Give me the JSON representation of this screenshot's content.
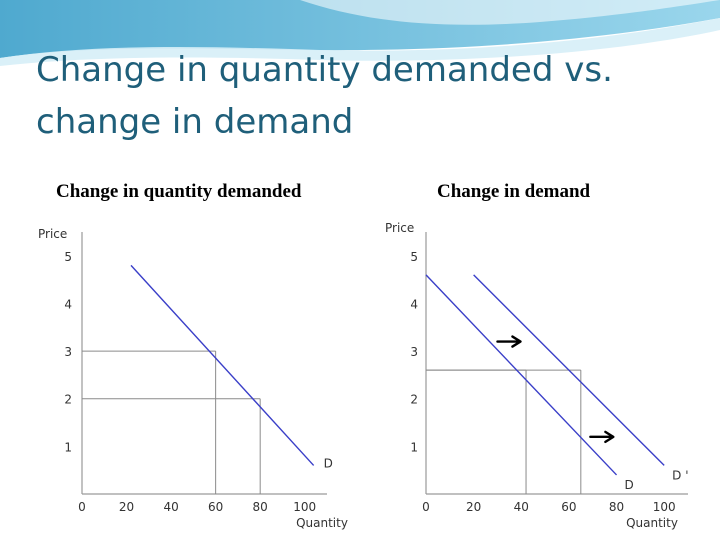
{
  "slide": {
    "title_line1": "Change in quantity demanded vs.",
    "title_line2": "change in demand"
  },
  "colors": {
    "title": "#1f5f7a",
    "demand_line": "#3a3fc8",
    "guide_line": "#8a8a8a",
    "axis": "#9a9a9a",
    "banner": "#5fb6d8"
  },
  "chart_data": [
    {
      "type": "line",
      "heading": "Change in quantity demanded",
      "ylabel": "Price",
      "xlabel": "Quantity",
      "xlim": [
        0,
        110
      ],
      "ylim": [
        0,
        5.5
      ],
      "xticks": [
        0,
        20,
        40,
        60,
        80,
        100
      ],
      "yticks": [
        1,
        2,
        3,
        4,
        5
      ],
      "series": [
        {
          "name": "D",
          "points": [
            [
              22,
              4.8
            ],
            [
              104,
              0.6
            ]
          ]
        }
      ],
      "guides": [
        {
          "x": 60,
          "y": 3
        },
        {
          "x": 80,
          "y": 2
        }
      ],
      "arrows": []
    },
    {
      "type": "line",
      "heading": "Change in demand",
      "ylabel": "Price",
      "xlabel": "Quantity",
      "xlim": [
        0,
        110
      ],
      "ylim": [
        0,
        5.5
      ],
      "xticks": [
        0,
        20,
        40,
        60,
        80,
        100
      ],
      "yticks": [
        1,
        2,
        3,
        4,
        5
      ],
      "series": [
        {
          "name": "D",
          "points": [
            [
              0,
              4.6
            ],
            [
              80,
              0.4
            ]
          ]
        },
        {
          "name": "D '",
          "points": [
            [
              20,
              4.6
            ],
            [
              100,
              0.6
            ]
          ]
        }
      ],
      "guides": [
        {
          "x": 42,
          "y": 2.6
        },
        {
          "x": 65,
          "y": 2.6
        }
      ],
      "arrows": [
        {
          "x": 30,
          "y": 3.2
        },
        {
          "x": 69,
          "y": 1.2
        }
      ]
    }
  ]
}
